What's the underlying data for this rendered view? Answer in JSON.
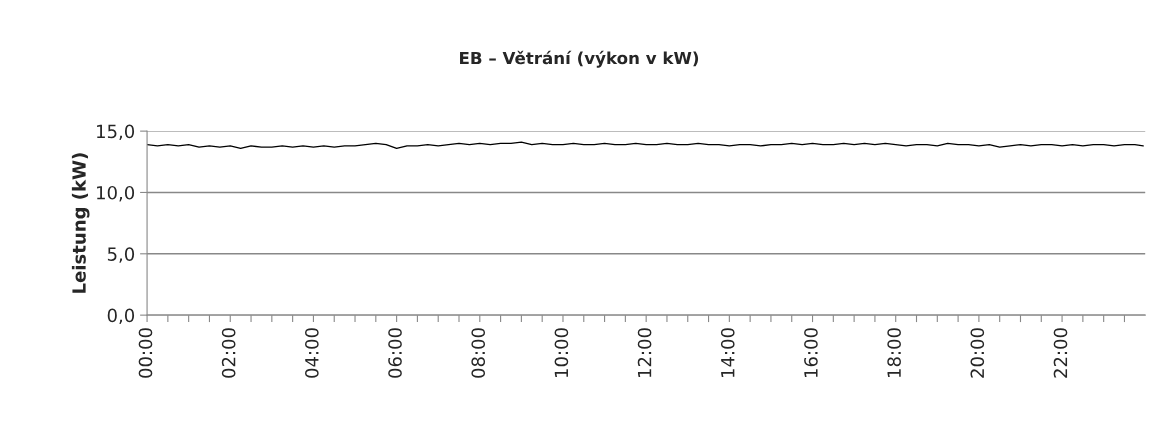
{
  "chart_data": {
    "type": "line",
    "title": "EB – Větrání (výkon v kW)",
    "ylabel": "Leistung (kW)",
    "x": [
      0,
      0.25,
      0.5,
      0.75,
      1,
      1.25,
      1.5,
      1.75,
      2,
      2.25,
      2.5,
      2.75,
      3,
      3.25,
      3.5,
      3.75,
      4,
      4.25,
      4.5,
      4.75,
      5,
      5.25,
      5.5,
      5.75,
      6,
      6.25,
      6.5,
      6.75,
      7,
      7.25,
      7.5,
      7.75,
      8,
      8.25,
      8.5,
      8.75,
      9,
      9.25,
      9.5,
      9.75,
      10,
      10.25,
      10.5,
      10.75,
      11,
      11.25,
      11.5,
      11.75,
      12,
      12.25,
      12.5,
      12.75,
      13,
      13.25,
      13.5,
      13.75,
      14,
      14.25,
      14.5,
      14.75,
      15,
      15.25,
      15.5,
      15.75,
      16,
      16.25,
      16.5,
      16.75,
      17,
      17.25,
      17.5,
      17.75,
      18,
      18.25,
      18.5,
      18.75,
      19,
      19.25,
      19.5,
      19.75,
      20,
      20.25,
      20.5,
      20.75,
      21,
      21.25,
      21.5,
      21.75,
      22,
      22.25,
      22.5,
      22.75,
      23,
      23.25,
      23.5,
      23.75,
      23.95
    ],
    "series": [
      {
        "color": "#000000",
        "values": [
          13.9,
          13.8,
          13.9,
          13.8,
          13.9,
          13.7,
          13.8,
          13.7,
          13.8,
          13.6,
          13.8,
          13.7,
          13.7,
          13.8,
          13.7,
          13.8,
          13.7,
          13.8,
          13.7,
          13.8,
          13.8,
          13.9,
          14.0,
          13.9,
          13.6,
          13.8,
          13.8,
          13.9,
          13.8,
          13.9,
          14.0,
          13.9,
          14.0,
          13.9,
          14.0,
          14.0,
          14.1,
          13.9,
          14.0,
          13.9,
          13.9,
          14.0,
          13.9,
          13.9,
          14.0,
          13.9,
          13.9,
          14.0,
          13.9,
          13.9,
          14.0,
          13.9,
          13.9,
          14.0,
          13.9,
          13.9,
          13.8,
          13.9,
          13.9,
          13.8,
          13.9,
          13.9,
          14.0,
          13.9,
          14.0,
          13.9,
          13.9,
          14.0,
          13.9,
          14.0,
          13.9,
          14.0,
          13.9,
          13.8,
          13.9,
          13.9,
          13.8,
          14.0,
          13.9,
          13.9,
          13.8,
          13.9,
          13.7,
          13.8,
          13.9,
          13.8,
          13.9,
          13.9,
          13.8,
          13.9,
          13.8,
          13.9,
          13.9,
          13.8,
          13.9,
          13.9,
          13.8
        ]
      }
    ],
    "xlim": [
      0,
      24
    ],
    "ylim": [
      0,
      15
    ],
    "yticks": [
      {
        "value": 0,
        "label": "0,0"
      },
      {
        "value": 5,
        "label": "5,0"
      },
      {
        "value": 10,
        "label": "10,0"
      },
      {
        "value": 15,
        "label": "15,0"
      }
    ],
    "xticks": [
      {
        "value": 0,
        "label": "00:00"
      },
      {
        "value": 0.5,
        "label": null
      },
      {
        "value": 1,
        "label": null
      },
      {
        "value": 1.5,
        "label": null
      },
      {
        "value": 2,
        "label": "02:00"
      },
      {
        "value": 2.5,
        "label": null
      },
      {
        "value": 3,
        "label": null
      },
      {
        "value": 3.5,
        "label": null
      },
      {
        "value": 4,
        "label": "04:00"
      },
      {
        "value": 4.5,
        "label": null
      },
      {
        "value": 5,
        "label": null
      },
      {
        "value": 5.5,
        "label": null
      },
      {
        "value": 6,
        "label": "06:00"
      },
      {
        "value": 6.5,
        "label": null
      },
      {
        "value": 7,
        "label": null
      },
      {
        "value": 7.5,
        "label": null
      },
      {
        "value": 8,
        "label": "08:00"
      },
      {
        "value": 8.5,
        "label": null
      },
      {
        "value": 9,
        "label": null
      },
      {
        "value": 9.5,
        "label": null
      },
      {
        "value": 10,
        "label": "10:00"
      },
      {
        "value": 10.5,
        "label": null
      },
      {
        "value": 11,
        "label": null
      },
      {
        "value": 11.5,
        "label": null
      },
      {
        "value": 12,
        "label": "12:00"
      },
      {
        "value": 12.5,
        "label": null
      },
      {
        "value": 13,
        "label": null
      },
      {
        "value": 13.5,
        "label": null
      },
      {
        "value": 14,
        "label": "14:00"
      },
      {
        "value": 14.5,
        "label": null
      },
      {
        "value": 15,
        "label": null
      },
      {
        "value": 15.5,
        "label": null
      },
      {
        "value": 16,
        "label": "16:00"
      },
      {
        "value": 16.5,
        "label": null
      },
      {
        "value": 17,
        "label": null
      },
      {
        "value": 17.5,
        "label": null
      },
      {
        "value": 18,
        "label": "18:00"
      },
      {
        "value": 18.5,
        "label": null
      },
      {
        "value": 19,
        "label": null
      },
      {
        "value": 19.5,
        "label": null
      },
      {
        "value": 20,
        "label": "20:00"
      },
      {
        "value": 20.5,
        "label": null
      },
      {
        "value": 21,
        "label": null
      },
      {
        "value": 21.5,
        "label": null
      },
      {
        "value": 22,
        "label": "22:00"
      },
      {
        "value": 22.5,
        "label": null
      },
      {
        "value": 23,
        "label": null
      },
      {
        "value": 23.5,
        "label": null
      }
    ],
    "grid": "y",
    "legend": false,
    "marker": "none",
    "line_style": "solid"
  }
}
